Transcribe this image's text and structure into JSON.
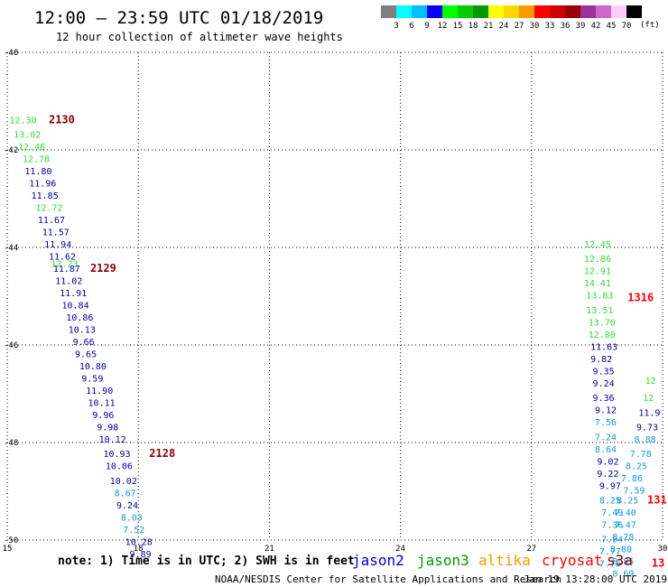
{
  "header": {
    "title": "12:00 – 23:59 UTC 01/18/2019",
    "subtitle": "12 hour collection of altimeter wave heights"
  },
  "colorbar": {
    "unit": "(ft)",
    "bins": [
      {
        "label": "3",
        "color": "#7f7f7f"
      },
      {
        "label": "6",
        "color": "#00ffff"
      },
      {
        "label": "9",
        "color": "#00bfff"
      },
      {
        "label": "12",
        "color": "#0000ff"
      },
      {
        "label": "15",
        "color": "#00ff00"
      },
      {
        "label": "18",
        "color": "#00cc00"
      },
      {
        "label": "21",
        "color": "#009900"
      },
      {
        "label": "24",
        "color": "#ffff00"
      },
      {
        "label": "27",
        "color": "#ffd700"
      },
      {
        "label": "30",
        "color": "#ff9900"
      },
      {
        "label": "33",
        "color": "#ff0000"
      },
      {
        "label": "36",
        "color": "#cc0000"
      },
      {
        "label": "39",
        "color": "#990000"
      },
      {
        "label": "42",
        "color": "#993399"
      },
      {
        "label": "45",
        "color": "#cc66cc"
      },
      {
        "label": "70",
        "color": "#ffccff"
      },
      {
        "label": "",
        "color": "#000000"
      }
    ]
  },
  "chart_data": {
    "type": "scatter",
    "xlim": [
      15,
      30
    ],
    "ylim": [
      -50,
      -40
    ],
    "xticks": [
      "15",
      "18",
      "21",
      "24",
      "27",
      "30"
    ],
    "yticks": [
      "-40",
      "-42",
      "-44",
      "-46",
      "-48",
      "-50"
    ],
    "grid": true,
    "colors": {
      "jason2": "#0000aa",
      "jason3": "#33dd33",
      "altika": "#ff9900",
      "cryosat": "#ff0000",
      "s3a": "#880000",
      "cyan": "#1199dd"
    },
    "points": [
      {
        "x": 15.05,
        "y": -41.45,
        "label": "12.30",
        "color": "#33dd33"
      },
      {
        "x": 15.15,
        "y": -41.75,
        "label": "13.02",
        "color": "#33dd33"
      },
      {
        "x": 15.25,
        "y": -42.0,
        "label": "12.46",
        "color": "#33dd33"
      },
      {
        "x": 15.35,
        "y": -42.25,
        "label": "12.78",
        "color": "#33dd33"
      },
      {
        "x": 15.4,
        "y": -42.5,
        "label": "11.80",
        "color": "#0000aa"
      },
      {
        "x": 15.5,
        "y": -42.75,
        "label": "11.96",
        "color": "#0000aa"
      },
      {
        "x": 15.55,
        "y": -43.0,
        "label": "11.85",
        "color": "#0000aa"
      },
      {
        "x": 15.65,
        "y": -43.25,
        "label": "12.72",
        "color": "#33dd33"
      },
      {
        "x": 15.7,
        "y": -43.5,
        "label": "11.67",
        "color": "#0000aa"
      },
      {
        "x": 15.8,
        "y": -43.75,
        "label": "11.57",
        "color": "#0000aa"
      },
      {
        "x": 15.85,
        "y": -44.0,
        "label": "11.94",
        "color": "#0000aa"
      },
      {
        "x": 15.95,
        "y": -44.25,
        "label": "11.62",
        "color": "#0000aa"
      },
      {
        "x": 16.0,
        "y": -44.4,
        "label": "12.23",
        "color": "#33dd33"
      },
      {
        "x": 16.05,
        "y": -44.5,
        "label": "11.87",
        "color": "#0000aa"
      },
      {
        "x": 16.1,
        "y": -44.75,
        "label": "11.02",
        "color": "#0000aa"
      },
      {
        "x": 16.2,
        "y": -45.0,
        "label": "11.91",
        "color": "#0000aa"
      },
      {
        "x": 16.25,
        "y": -45.25,
        "label": "10.84",
        "color": "#0000aa"
      },
      {
        "x": 16.35,
        "y": -45.5,
        "label": "10.86",
        "color": "#0000aa"
      },
      {
        "x": 16.4,
        "y": -45.75,
        "label": "10.13",
        "color": "#0000aa"
      },
      {
        "x": 16.5,
        "y": -46.0,
        "label": "9.66",
        "color": "#0000aa"
      },
      {
        "x": 16.55,
        "y": -46.25,
        "label": "9.65",
        "color": "#0000aa"
      },
      {
        "x": 16.65,
        "y": -46.5,
        "label": "10.80",
        "color": "#0000aa"
      },
      {
        "x": 16.7,
        "y": -46.75,
        "label": "9.59",
        "color": "#0000aa"
      },
      {
        "x": 16.8,
        "y": -47.0,
        "label": "11.90",
        "color": "#0000aa"
      },
      {
        "x": 16.85,
        "y": -47.25,
        "label": "10.11",
        "color": "#0000aa"
      },
      {
        "x": 16.95,
        "y": -47.5,
        "label": "9.96",
        "color": "#0000aa"
      },
      {
        "x": 17.05,
        "y": -47.75,
        "label": "9.98",
        "color": "#0000aa"
      },
      {
        "x": 17.1,
        "y": -48.0,
        "label": "10.12",
        "color": "#0000aa"
      },
      {
        "x": 17.2,
        "y": -48.3,
        "label": "10.93",
        "color": "#0000aa"
      },
      {
        "x": 17.25,
        "y": -48.55,
        "label": "10.06",
        "color": "#0000aa"
      },
      {
        "x": 17.35,
        "y": -48.85,
        "label": "10.02",
        "color": "#0000aa"
      },
      {
        "x": 17.45,
        "y": -49.1,
        "label": "8.67",
        "color": "#1199dd"
      },
      {
        "x": 17.5,
        "y": -49.35,
        "label": "9.24",
        "color": "#0000aa"
      },
      {
        "x": 17.6,
        "y": -49.6,
        "label": "8.03",
        "color": "#1199dd"
      },
      {
        "x": 17.65,
        "y": -49.85,
        "label": "7.52",
        "color": "#1199dd"
      },
      {
        "x": 17.7,
        "y": -50.1,
        "label": "10.28",
        "color": "#0000aa"
      },
      {
        "x": 17.8,
        "y": -50.35,
        "label": "9.89",
        "color": "#0000aa"
      },
      {
        "x": 28.2,
        "y": -44.0,
        "label": "12.45",
        "color": "#33dd33"
      },
      {
        "x": 28.2,
        "y": -44.3,
        "label": "12.86",
        "color": "#33dd33"
      },
      {
        "x": 28.2,
        "y": -44.55,
        "label": "12.91",
        "color": "#33dd33"
      },
      {
        "x": 28.2,
        "y": -44.8,
        "label": "14.41",
        "color": "#33dd33"
      },
      {
        "x": 28.25,
        "y": -45.05,
        "label": "13.83",
        "color": "#33dd33"
      },
      {
        "x": 28.25,
        "y": -45.35,
        "label": "13.51",
        "color": "#33dd33"
      },
      {
        "x": 28.3,
        "y": -45.6,
        "label": "13.70",
        "color": "#33dd33"
      },
      {
        "x": 28.3,
        "y": -45.85,
        "label": "12.80",
        "color": "#33dd33"
      },
      {
        "x": 28.35,
        "y": -46.1,
        "label": "11.63",
        "color": "#0000aa"
      },
      {
        "x": 28.35,
        "y": -46.35,
        "label": "9.82",
        "color": "#0000aa"
      },
      {
        "x": 28.4,
        "y": -46.6,
        "label": "9.35",
        "color": "#0000aa"
      },
      {
        "x": 28.4,
        "y": -46.85,
        "label": "9.24",
        "color": "#0000aa"
      },
      {
        "x": 28.4,
        "y": -47.15,
        "label": "9.36",
        "color": "#0000aa"
      },
      {
        "x": 28.45,
        "y": -47.4,
        "label": "9.12",
        "color": "#0000aa"
      },
      {
        "x": 28.45,
        "y": -47.65,
        "label": "7.56",
        "color": "#1199dd"
      },
      {
        "x": 28.45,
        "y": -47.95,
        "label": "7.24",
        "color": "#1199dd"
      },
      {
        "x": 28.45,
        "y": -48.2,
        "label": "8.64",
        "color": "#1199dd"
      },
      {
        "x": 28.5,
        "y": -48.45,
        "label": "9.02",
        "color": "#0000aa"
      },
      {
        "x": 28.5,
        "y": -48.7,
        "label": "9.22",
        "color": "#0000aa"
      },
      {
        "x": 28.55,
        "y": -48.95,
        "label": "9.97",
        "color": "#0000aa"
      },
      {
        "x": 28.55,
        "y": -49.25,
        "label": "8.25",
        "color": "#1199dd"
      },
      {
        "x": 28.6,
        "y": -49.5,
        "label": "7.49",
        "color": "#1199dd"
      },
      {
        "x": 28.6,
        "y": -49.75,
        "label": "7.36",
        "color": "#1199dd"
      },
      {
        "x": 28.6,
        "y": -50.05,
        "label": "7.84",
        "color": "#1199dd"
      },
      {
        "x": 28.55,
        "y": -50.3,
        "label": "7.77",
        "color": "#1199dd"
      },
      {
        "x": 28.55,
        "y": -50.55,
        "label": "7.75",
        "color": "#1199dd"
      },
      {
        "x": 29.05,
        "y": -48.8,
        "label": "7.86",
        "color": "#1199dd"
      },
      {
        "x": 29.1,
        "y": -49.05,
        "label": "7.59",
        "color": "#1199dd"
      },
      {
        "x": 28.95,
        "y": -49.25,
        "label": "8.25",
        "color": "#1199dd"
      },
      {
        "x": 28.9,
        "y": -49.5,
        "label": "7.40",
        "color": "#1199dd"
      },
      {
        "x": 28.9,
        "y": -49.75,
        "label": "7.47",
        "color": "#1199dd"
      },
      {
        "x": 28.85,
        "y": -50.0,
        "label": "8.28",
        "color": "#1199dd"
      },
      {
        "x": 28.8,
        "y": -50.25,
        "label": "8.80",
        "color": "#1199dd"
      },
      {
        "x": 28.85,
        "y": -50.5,
        "label": "8.85",
        "color": "#1199dd"
      },
      {
        "x": 28.85,
        "y": -50.75,
        "label": "8.69",
        "color": "#1199dd"
      },
      {
        "x": 29.15,
        "y": -48.55,
        "label": "8.25",
        "color": "#1199dd"
      },
      {
        "x": 29.25,
        "y": -48.3,
        "label": "7.78",
        "color": "#1199dd"
      },
      {
        "x": 29.35,
        "y": -48.0,
        "label": "8.88",
        "color": "#1199dd"
      },
      {
        "x": 29.4,
        "y": -47.75,
        "label": "9.73",
        "color": "#0000aa"
      },
      {
        "x": 29.45,
        "y": -47.45,
        "label": "11.9",
        "color": "#0000aa"
      },
      {
        "x": 29.55,
        "y": -47.15,
        "label": "12",
        "color": "#33dd33"
      },
      {
        "x": 29.6,
        "y": -46.8,
        "label": "12",
        "color": "#33dd33"
      }
    ],
    "annotations": [
      {
        "x": 15.95,
        "y": -41.45,
        "label": "2130",
        "color": "#880000"
      },
      {
        "x": 16.9,
        "y": -44.5,
        "label": "2129",
        "color": "#880000"
      },
      {
        "x": 18.25,
        "y": -48.3,
        "label": "2128",
        "color": "#880000"
      },
      {
        "x": 29.2,
        "y": -45.1,
        "label": "1316",
        "color": "#ff0000"
      },
      {
        "x": 29.65,
        "y": -49.25,
        "label": "131",
        "color": "#ff0000"
      },
      {
        "x": 29.75,
        "y": -50.55,
        "label": "13",
        "color": "#ff0000"
      }
    ]
  },
  "footer": {
    "note": "note:  1) Time is in UTC;  2) SWH is in feet",
    "credit": "NOAA/NESDIS Center for Satellite Applications and Research",
    "timestamp": "Jan 19  13:28:00 UTC 2019",
    "satellites": [
      {
        "name": "jason2",
        "color": "#0000cc"
      },
      {
        "name": "jason3",
        "color": "#009900"
      },
      {
        "name": "altika",
        "color": "#ff9900"
      },
      {
        "name": "cryosat",
        "color": "#ff0000"
      },
      {
        "name": "s3a",
        "color": "#880000"
      }
    ]
  }
}
